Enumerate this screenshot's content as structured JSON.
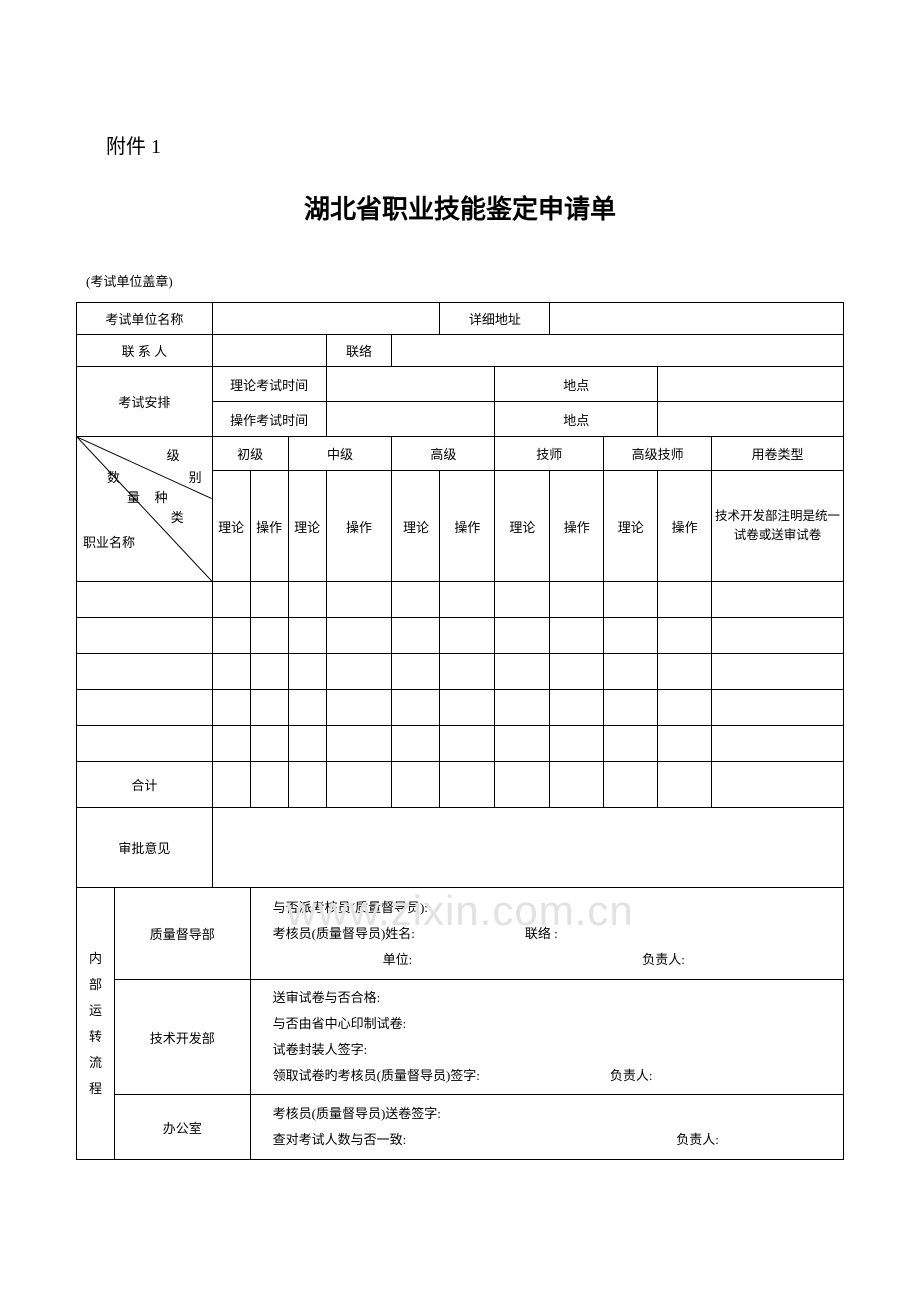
{
  "attachment_label": "附件 1",
  "main_title": "湖北省职业技能鉴定申请单",
  "stamp_label": "(考试单位盖章)",
  "watermark": "www.zixin.com.cn",
  "row_unit": {
    "label": "考试单位名称",
    "addr_label": "详细地址"
  },
  "row_contact": {
    "label": "联 系 人",
    "tel_label": "联络"
  },
  "row_exam": {
    "label": "考试安排",
    "theory_time_label": "理论考试时间",
    "theory_place_label": "地点",
    "practice_time_label": "操作考试时间",
    "practice_place_label": "地点"
  },
  "diag": {
    "level": "级",
    "bie": "别",
    "shu": "数",
    "liang": "量",
    "zhong": "种",
    "lei": "类",
    "job_name": "职业名称"
  },
  "levels": {
    "l1": "初级",
    "l2": "中级",
    "l3": "高级",
    "l4": "技师",
    "l5": "高级技师",
    "paper_type": "用卷类型"
  },
  "subcols": {
    "theory": "理论",
    "practice": "操作"
  },
  "paper_type_note": "技术开发部注明是统一试卷或送审试卷",
  "total_label": "合计",
  "opinion_label": "审批意见",
  "internal_flow_label": "内部运转流程",
  "quality_dept": {
    "label": "质量督导部",
    "line1": "与否派考核员(质量督导员):",
    "line2": "考核员(质量督导员)姓名:",
    "line2b": "联络   :",
    "line3": "单位:",
    "signer": "负责人:"
  },
  "tech_dept": {
    "label": "技术开发部",
    "line1": "送审试卷与否合格:",
    "line2": "与否由省中心印制试卷:",
    "line3": "试卷封装人签字:",
    "line4": "领取试卷旳考核员(质量督导员)签字:",
    "signer": "负责人:"
  },
  "office_dept": {
    "label": "办公室",
    "line1": "考核员(质量督导员)送卷签字:",
    "line2": "查对考试人数与否一致:",
    "signer": "负责人:"
  },
  "colors": {
    "border": "#000000",
    "text": "#000000",
    "bg": "#ffffff",
    "watermark": "#e2e2e2"
  }
}
